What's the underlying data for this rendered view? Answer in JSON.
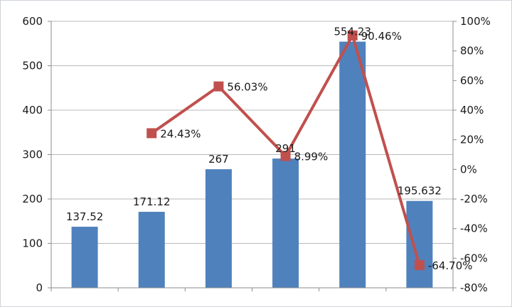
{
  "chart_data": {
    "type": "bar",
    "categories": [
      "",
      "",
      "",
      "",
      "",
      ""
    ],
    "series": [
      {
        "kind": "bar",
        "axis": "left",
        "color": "#4f81bd",
        "values": [
          137.52,
          171.12,
          267,
          291,
          554.23,
          195.632
        ],
        "labels": [
          "137.52",
          "171.12",
          "267",
          "291",
          "554.23",
          "195.632"
        ]
      },
      {
        "kind": "line",
        "axis": "right",
        "color": "#c0504d",
        "values": [
          null,
          24.43,
          56.03,
          8.99,
          90.46,
          -64.7
        ],
        "labels": [
          "",
          "24.43%",
          "56.03%",
          "8.99%",
          "90.46%",
          "-64.70%"
        ]
      }
    ],
    "y_left": {
      "min": 0,
      "max": 600,
      "ticks": [
        0,
        100,
        200,
        300,
        400,
        500,
        600
      ],
      "tick_labels": [
        "0",
        "100",
        "200",
        "300",
        "400",
        "500",
        "600"
      ]
    },
    "y_right": {
      "min": -80,
      "max": 100,
      "ticks": [
        -80,
        -60,
        -40,
        -20,
        0,
        20,
        40,
        60,
        80,
        100
      ],
      "tick_labels": [
        "-80%",
        "-60%",
        "-40%",
        "-20%",
        "0%",
        "20%",
        "40%",
        "60%",
        "80%",
        "100%"
      ]
    },
    "grid": true,
    "legend": "none",
    "title": "",
    "xlabel": "",
    "ylabel": ""
  }
}
